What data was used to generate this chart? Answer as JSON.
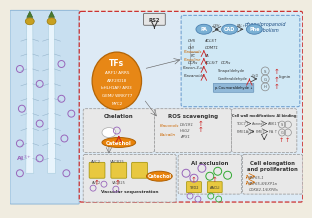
{
  "bg_color": "#f0ece0",
  "root_bg": "#c8dff0",
  "main_box_bg": "#ddeaf5",
  "main_box_border": "#cc3333",
  "orange_color": "#e8820a",
  "blue_oval_color": "#7ab0d4",
  "phenyl_box_bg": "#d0e8f5",
  "phenyl_box_border": "#6699cc",
  "sub_box_bg": "#e8e8e8",
  "sub_box_border": "#999999",
  "red_arrow": "#cc2222",
  "dark_text": "#222222",
  "orange_text": "#cc6600",
  "purple_circle": "#9966bb",
  "green_circle": "#33aa33",
  "yellow_box": "#e8c840",
  "white": "#ffffff"
}
